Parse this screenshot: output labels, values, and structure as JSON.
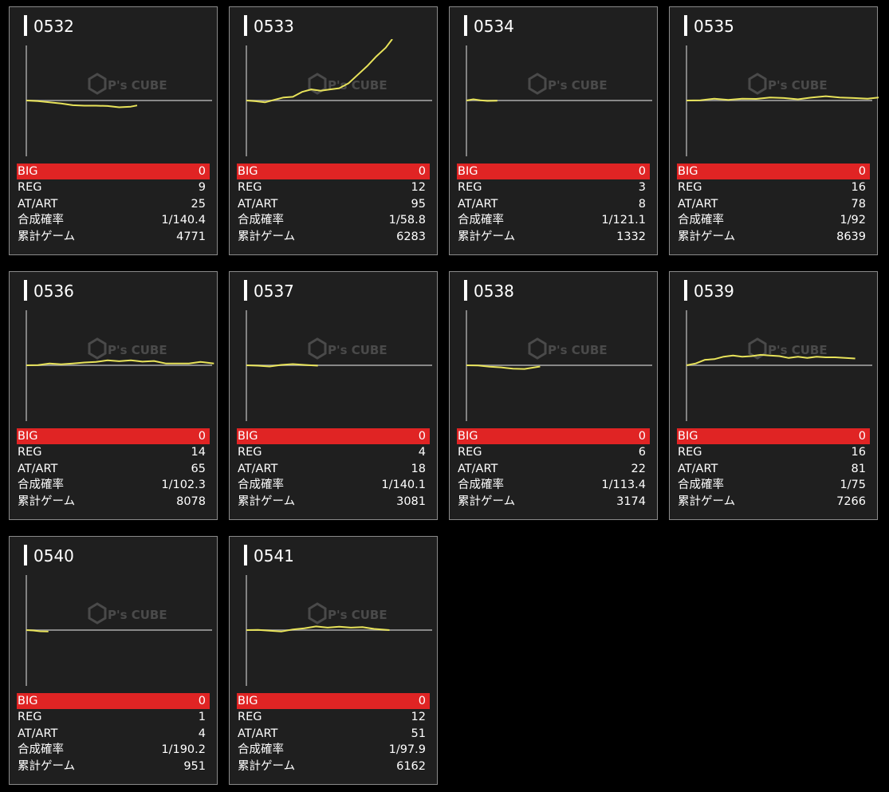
{
  "labels": {
    "big": "BIG",
    "reg": "REG",
    "at": "AT/ART",
    "prob": "合成確率",
    "games": "累計ゲーム"
  },
  "watermark": {
    "brand": "P's CUBE"
  },
  "colors": {
    "page_bg": "#000000",
    "card_bg": "#1f1f1f",
    "card_border": "#8a8a8a",
    "big_row": "#e02424",
    "line": "#e8e35a",
    "baseline": "#888888"
  },
  "machines": [
    {
      "id": "0532",
      "big": "0",
      "reg": "9",
      "at": "25",
      "prob": "1/140.4",
      "games": "4771",
      "chart_data": {
        "type": "line",
        "x": [
          0,
          500,
          1000,
          1500,
          2000,
          2500,
          3000,
          3500,
          4000,
          4500,
          4771
        ],
        "y": [
          0,
          -50,
          -150,
          -250,
          -380,
          -420,
          -420,
          -450,
          -550,
          -500,
          -400
        ]
      }
    },
    {
      "id": "0533",
      "big": "0",
      "reg": "12",
      "at": "95",
      "prob": "1/58.8",
      "games": "6283",
      "chart_data": {
        "type": "line",
        "x": [
          0,
          400,
          800,
          1200,
          1600,
          2000,
          2400,
          2800,
          3200,
          3600,
          4000,
          4400,
          4800,
          5200,
          5600,
          6000,
          6283
        ],
        "y": [
          0,
          -60,
          -150,
          50,
          250,
          300,
          700,
          900,
          800,
          900,
          1000,
          1400,
          2100,
          2800,
          3600,
          4300,
          5000
        ]
      }
    },
    {
      "id": "0534",
      "big": "0",
      "reg": "3",
      "at": "8",
      "prob": "1/121.1",
      "games": "1332",
      "chart_data": {
        "type": "line",
        "x": [
          0,
          300,
          600,
          900,
          1332
        ],
        "y": [
          0,
          100,
          20,
          -30,
          -20
        ]
      }
    },
    {
      "id": "0535",
      "big": "0",
      "reg": "16",
      "at": "78",
      "prob": "1/92",
      "games": "8639",
      "chart_data": {
        "type": "line",
        "x": [
          0,
          600,
          1200,
          1800,
          2400,
          3000,
          3600,
          4200,
          4800,
          5400,
          6000,
          6600,
          7200,
          7800,
          8300,
          8639
        ],
        "y": [
          0,
          20,
          150,
          50,
          150,
          130,
          250,
          200,
          100,
          250,
          350,
          250,
          200,
          150,
          250,
          280
        ]
      }
    },
    {
      "id": "0536",
      "big": "0",
      "reg": "14",
      "at": "65",
      "prob": "1/102.3",
      "games": "8078",
      "chart_data": {
        "type": "line",
        "x": [
          0,
          500,
          1000,
          1500,
          2000,
          2500,
          3000,
          3500,
          4000,
          4500,
          5000,
          5500,
          6000,
          6500,
          7000,
          7500,
          8078
        ],
        "y": [
          0,
          20,
          150,
          80,
          150,
          230,
          280,
          400,
          330,
          400,
          300,
          350,
          150,
          150,
          150,
          280,
          150
        ]
      }
    },
    {
      "id": "0537",
      "big": "0",
      "reg": "4",
      "at": "18",
      "prob": "1/140.1",
      "games": "3081",
      "chart_data": {
        "type": "line",
        "x": [
          0,
          500,
          1000,
          1500,
          2000,
          2500,
          3081
        ],
        "y": [
          0,
          -30,
          -100,
          30,
          100,
          30,
          -30
        ]
      }
    },
    {
      "id": "0538",
      "big": "0",
      "reg": "6",
      "at": "22",
      "prob": "1/113.4",
      "games": "3174",
      "chart_data": {
        "type": "line",
        "x": [
          0,
          500,
          1000,
          1500,
          2000,
          2500,
          3174
        ],
        "y": [
          0,
          -20,
          -120,
          -170,
          -280,
          -300,
          -100
        ]
      }
    },
    {
      "id": "0539",
      "big": "0",
      "reg": "16",
      "at": "81",
      "prob": "1/75",
      "games": "7266",
      "chart_data": {
        "type": "line",
        "x": [
          0,
          400,
          800,
          1200,
          1600,
          2000,
          2400,
          2800,
          3200,
          3600,
          4000,
          4400,
          4800,
          5200,
          5600,
          6000,
          6400,
          7266
        ],
        "y": [
          0,
          150,
          450,
          500,
          700,
          800,
          700,
          750,
          850,
          800,
          750,
          600,
          700,
          600,
          700,
          650,
          650,
          550
        ]
      }
    },
    {
      "id": "0540",
      "big": "0",
      "reg": "1",
      "at": "4",
      "prob": "1/190.2",
      "games": "951",
      "chart_data": {
        "type": "line",
        "x": [
          0,
          300,
          600,
          951
        ],
        "y": [
          0,
          -30,
          -100,
          -110
        ]
      }
    },
    {
      "id": "0541",
      "big": "0",
      "reg": "12",
      "at": "51",
      "prob": "1/97.9",
      "games": "6162",
      "chart_data": {
        "type": "line",
        "x": [
          0,
          500,
          1000,
          1500,
          2000,
          2500,
          3000,
          3500,
          4000,
          4500,
          5000,
          5500,
          6162
        ],
        "y": [
          0,
          20,
          -50,
          -120,
          50,
          150,
          300,
          200,
          280,
          200,
          250,
          100,
          0
        ]
      }
    }
  ]
}
